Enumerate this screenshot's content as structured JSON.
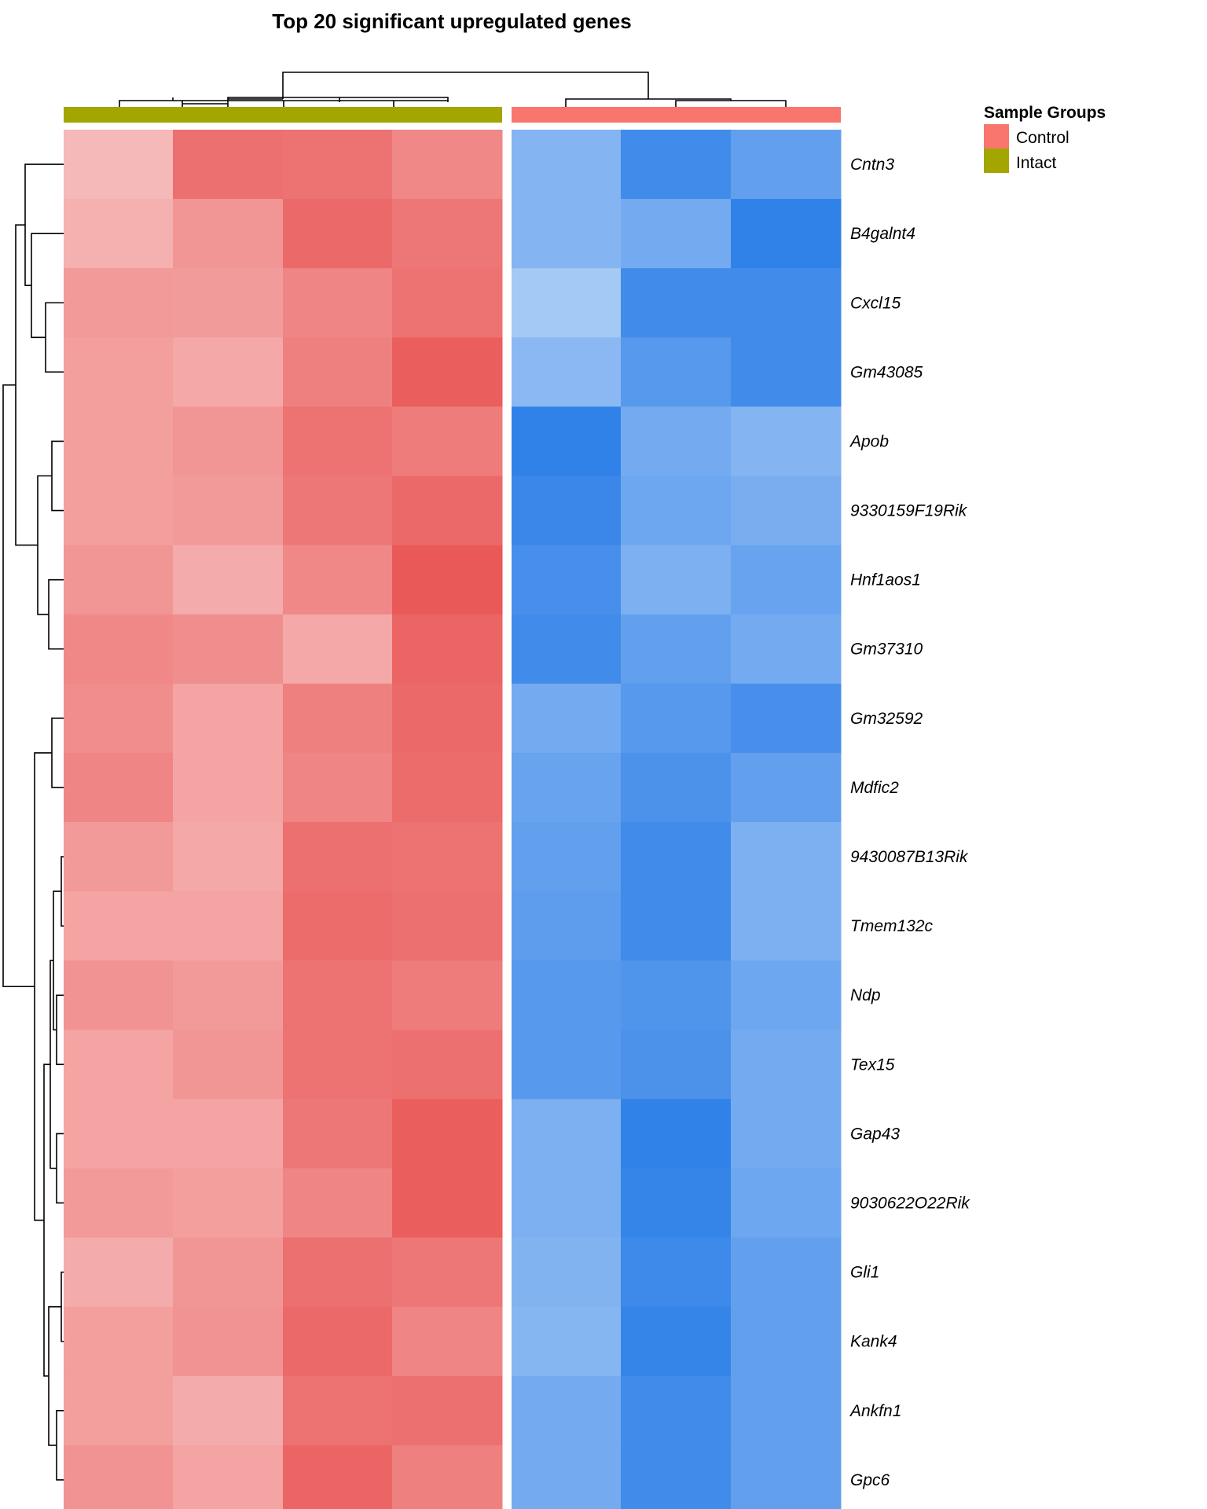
{
  "chart_data": {
    "type": "heatmap",
    "title": "Top 20 significant upregulated genes",
    "rows": [
      "Cntn3",
      "B4galnt4",
      "Cxcl15",
      "Gm43085",
      "Apob",
      "9330159F19Rik",
      "Hnf1aos1",
      "Gm37310",
      "Gm32592",
      "Mdfic2",
      "9430087B13Rik",
      "Tmem132c",
      "Ndp",
      "Tex15",
      "Gap43",
      "9030622O22Rik",
      "Gli1",
      "Kank4",
      "Ankfn1",
      "Gpc6"
    ],
    "columns": [
      {
        "group": "Intact"
      },
      {
        "group": "Intact"
      },
      {
        "group": "Intact"
      },
      {
        "group": "Intact"
      },
      {
        "group": "Control"
      },
      {
        "group": "Control"
      },
      {
        "group": "Control"
      }
    ],
    "values": [
      [
        0.4,
        0.82,
        0.8,
        0.68,
        -0.55,
        -0.85,
        -0.7
      ],
      [
        0.45,
        0.6,
        0.85,
        0.78,
        -0.55,
        -0.62,
        -0.92
      ],
      [
        0.58,
        0.57,
        0.7,
        0.8,
        -0.4,
        -0.85,
        -0.85
      ],
      [
        0.55,
        0.5,
        0.72,
        0.92,
        -0.52,
        -0.75,
        -0.85
      ],
      [
        0.55,
        0.6,
        0.8,
        0.75,
        -0.92,
        -0.62,
        -0.55
      ],
      [
        0.55,
        0.58,
        0.78,
        0.85,
        -0.88,
        -0.65,
        -0.6
      ],
      [
        0.6,
        0.48,
        0.68,
        0.95,
        -0.82,
        -0.58,
        -0.68
      ],
      [
        0.68,
        0.65,
        0.5,
        0.88,
        -0.85,
        -0.7,
        -0.62
      ],
      [
        0.65,
        0.52,
        0.72,
        0.85,
        -0.62,
        -0.75,
        -0.82
      ],
      [
        0.7,
        0.52,
        0.7,
        0.84,
        -0.68,
        -0.8,
        -0.7
      ],
      [
        0.58,
        0.5,
        0.82,
        0.8,
        -0.7,
        -0.85,
        -0.58
      ],
      [
        0.52,
        0.52,
        0.84,
        0.82,
        -0.72,
        -0.85,
        -0.58
      ],
      [
        0.62,
        0.58,
        0.8,
        0.75,
        -0.75,
        -0.78,
        -0.65
      ],
      [
        0.52,
        0.6,
        0.8,
        0.82,
        -0.75,
        -0.8,
        -0.62
      ],
      [
        0.52,
        0.52,
        0.78,
        0.92,
        -0.58,
        -0.92,
        -0.62
      ],
      [
        0.58,
        0.55,
        0.7,
        0.92,
        -0.58,
        -0.9,
        -0.65
      ],
      [
        0.48,
        0.6,
        0.82,
        0.78,
        -0.56,
        -0.86,
        -0.7
      ],
      [
        0.55,
        0.62,
        0.86,
        0.7,
        -0.54,
        -0.9,
        -0.7
      ],
      [
        0.55,
        0.48,
        0.8,
        0.82,
        -0.62,
        -0.85,
        -0.7
      ],
      [
        0.62,
        0.52,
        0.88,
        0.72,
        -0.62,
        -0.85,
        -0.7
      ]
    ],
    "color_scale": {
      "low": "#1f77e6",
      "mid": "#ffffff",
      "high": "#e8504f"
    },
    "column_annotation": {
      "title": "Sample Groups",
      "groups": [
        "Control",
        "Intact"
      ],
      "colors": {
        "Control": "#f8766d",
        "Intact": "#a3a500"
      }
    },
    "legend_position": "top-right"
  }
}
